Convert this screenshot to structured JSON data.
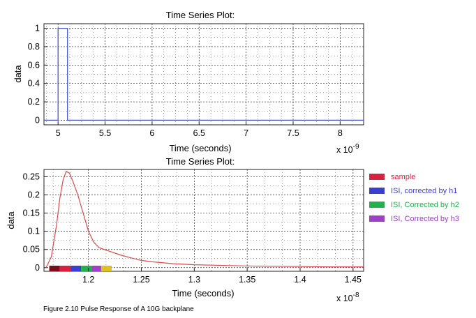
{
  "colors": {
    "sample": "#d8203f",
    "isi_h1": "#3b3fd0",
    "isi_h2": "#22b14c",
    "isi_h3": "#a040c8",
    "step_line": "#4a57c8",
    "pulse_line": "#e04848"
  },
  "legend": [
    {
      "label": "sample",
      "color": "#d8203f"
    },
    {
      "label": "ISI, corrected by h1",
      "color": "#3b3fd0"
    },
    {
      "label": "ISI, Corrected by h2",
      "color": "#22b14c"
    },
    {
      "label": "ISI, Corrected by h3",
      "color": "#a040c8"
    }
  ],
  "caption": "Figure 2.10 Pulse Response of A 10G backplane",
  "chart_data": [
    {
      "type": "line",
      "title": "Time Series Plot:",
      "xlabel": "Time (seconds)",
      "ylabel": "data",
      "x_multiplier": "x 10",
      "x_exponent": "-9",
      "xlim": [
        4.85,
        8.25
      ],
      "ylim": [
        -0.05,
        1.05
      ],
      "xticks": [
        "5",
        "5.5",
        "6",
        "6.5",
        "7",
        "7.5",
        "8"
      ],
      "yticks": [
        "0",
        "0.2",
        "0.4",
        "0.6",
        "0.8",
        "1"
      ],
      "grid": true,
      "series": [
        {
          "x": [
            4.85,
            5.0,
            5.0,
            5.1,
            5.1,
            8.25
          ],
          "y": [
            0,
            0,
            1,
            1,
            0,
            0
          ]
        }
      ]
    },
    {
      "type": "line",
      "title": "Time Series Plot:",
      "xlabel": "Time (seconds)",
      "ylabel": "data",
      "x_multiplier": "x 10",
      "x_exponent": "-8",
      "xlim": [
        1.158,
        1.46
      ],
      "ylim": [
        -0.01,
        0.27
      ],
      "xticks": [
        "1.2",
        "1.25",
        "1.3",
        "1.35",
        "1.4",
        "1.45"
      ],
      "yticks": [
        "0",
        "0.05",
        "0.1",
        "0.15",
        "0.2",
        "0.25"
      ],
      "grid": true,
      "series": [
        {
          "x": [
            1.16,
            1.165,
            1.17,
            1.173,
            1.176,
            1.179,
            1.182,
            1.185,
            1.19,
            1.195,
            1.2,
            1.205,
            1.21,
            1.22,
            1.23,
            1.24,
            1.25,
            1.26,
            1.28,
            1.3,
            1.33,
            1.36,
            1.4,
            1.43,
            1.46
          ],
          "y": [
            0.0,
            0.03,
            0.12,
            0.19,
            0.24,
            0.265,
            0.26,
            0.24,
            0.2,
            0.15,
            0.1,
            0.07,
            0.055,
            0.045,
            0.035,
            0.027,
            0.02,
            0.016,
            0.011,
            0.008,
            0.006,
            0.004,
            0.003,
            0.002,
            0.002
          ]
        }
      ],
      "markers": [
        {
          "x_start": 1.163,
          "x_end": 1.173,
          "color": "#7a0f1c"
        },
        {
          "x_start": 1.173,
          "x_end": 1.183,
          "color": "#d8203f"
        },
        {
          "x_start": 1.183,
          "x_end": 1.193,
          "color": "#3b3fd0"
        },
        {
          "x_start": 1.193,
          "x_end": 1.203,
          "color": "#22b14c"
        },
        {
          "x_start": 1.203,
          "x_end": 1.212,
          "color": "#a040c8"
        },
        {
          "x_start": 1.212,
          "x_end": 1.222,
          "color": "#e0c020"
        }
      ]
    }
  ]
}
